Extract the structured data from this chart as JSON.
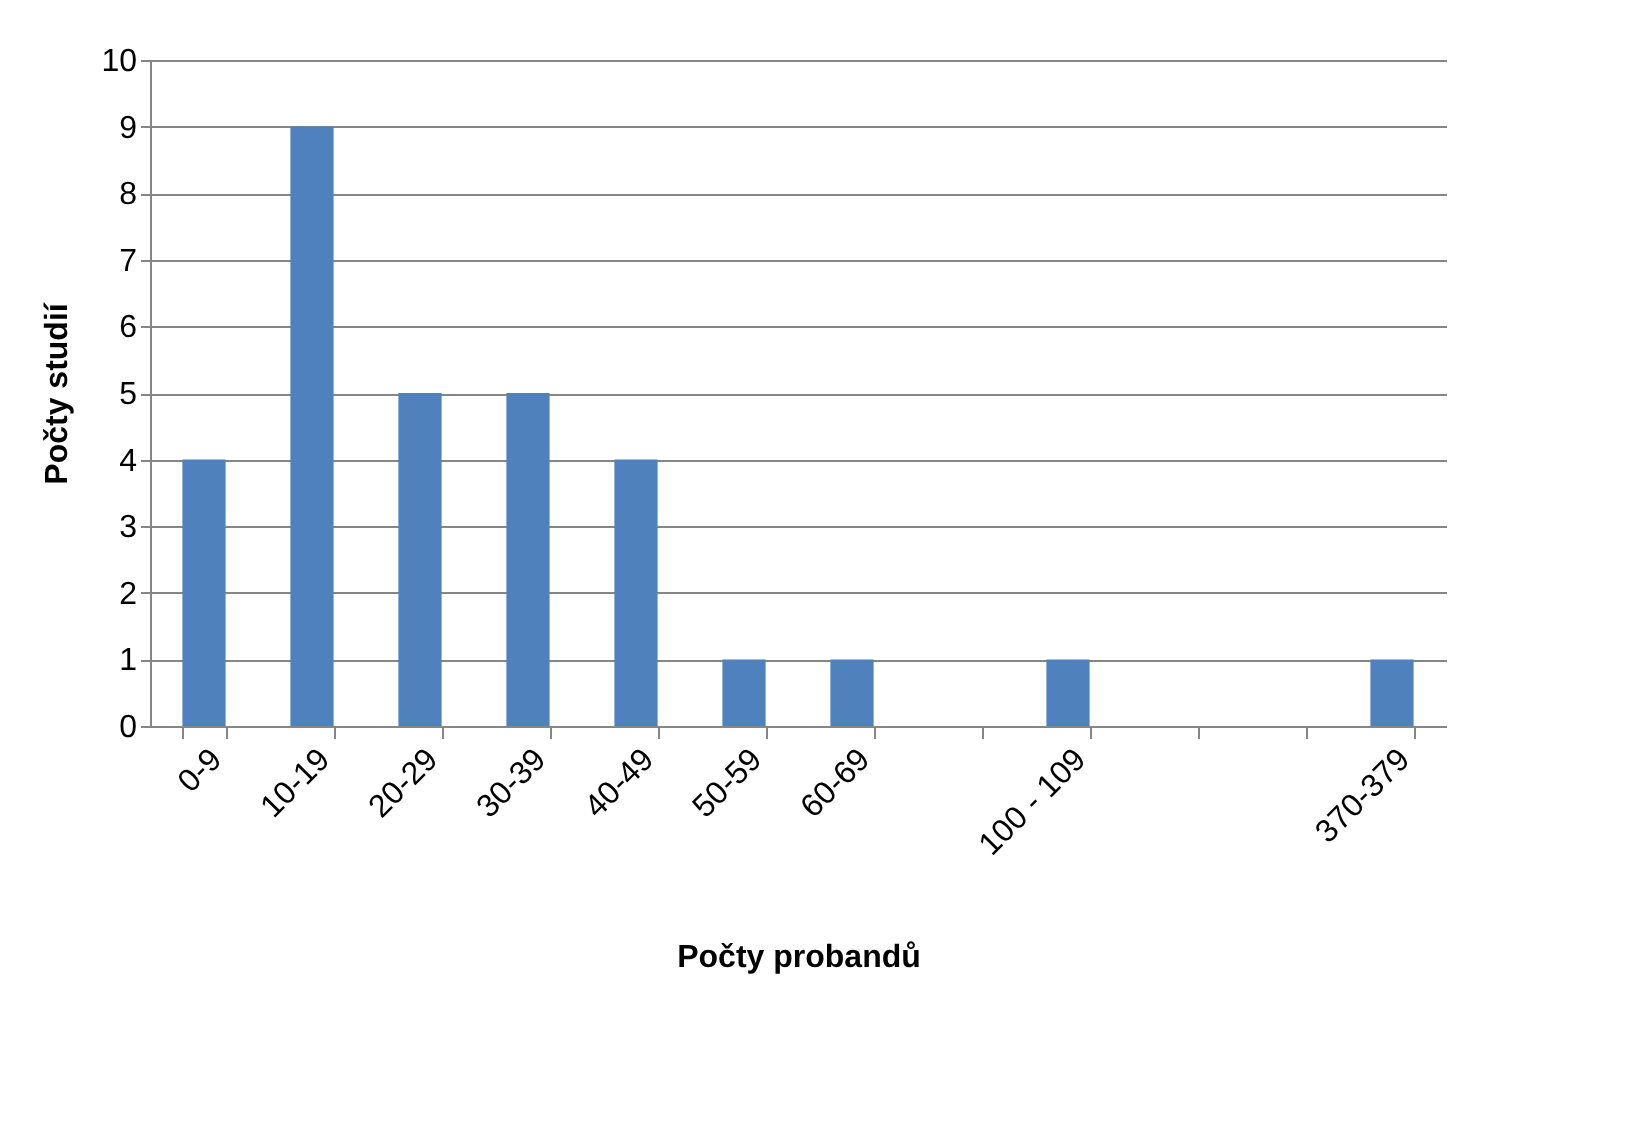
{
  "chart_data": {
    "type": "bar",
    "xlabel": "Počty probandů",
    "ylabel": "Počty studií",
    "categories": [
      "0-9",
      "10-19",
      "20-29",
      "30-39",
      "40-49",
      "50-59",
      "60-69",
      null,
      "100 - 109",
      null,
      null,
      "370-379"
    ],
    "values": [
      4,
      9,
      5,
      5,
      4,
      1,
      1,
      0,
      1,
      0,
      0,
      1
    ],
    "color": "#4f81bd",
    "ylim": [
      0,
      10
    ],
    "yticks": [
      0,
      1,
      2,
      3,
      4,
      5,
      6,
      7,
      8,
      9,
      10
    ],
    "grid": "y"
  }
}
